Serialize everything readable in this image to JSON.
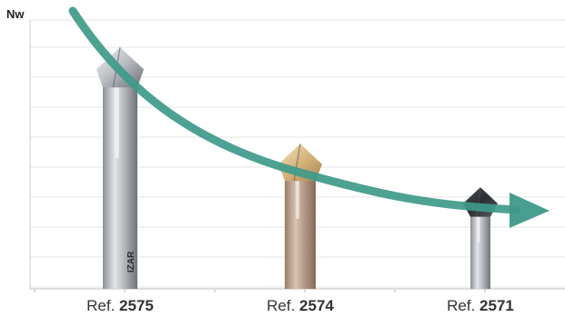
{
  "chart_data": {
    "type": "bar",
    "ylabel": "Nw",
    "xlabel": "",
    "title": "",
    "grid": true,
    "categories": [
      {
        "prefix": "Ref. ",
        "number": "2575",
        "finish": "uncoated",
        "color": "#b9bcc0"
      },
      {
        "prefix": "Ref. ",
        "number": "2574",
        "finish": "TiN coated",
        "color": "#c7a98a"
      },
      {
        "prefix": "Ref. ",
        "number": "2571",
        "finish": "uncoated",
        "color": "#bdc1c5"
      }
    ],
    "values": [
      1.0,
      0.6,
      0.42
    ],
    "ylim": [
      0,
      1.0
    ],
    "trend": {
      "direction": "decreasing",
      "color": "#3e9a8a"
    },
    "shank_label": "IZAR"
  }
}
